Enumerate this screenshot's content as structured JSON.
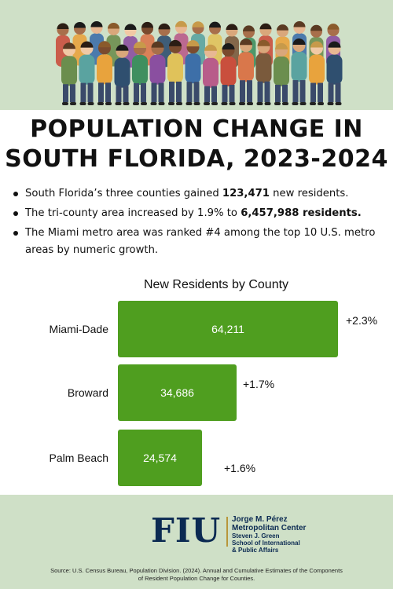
{
  "title": {
    "line1": "POPULATION CHANGE IN",
    "line2": "SOUTH FLORIDA, 2023-2024"
  },
  "bullets": [
    {
      "before": "South Florida’s three counties gained ",
      "bold": "123,471",
      "after": " new residents."
    },
    {
      "before": "The tri-county area increased by 1.9% to ",
      "bold": "6,457,988 residents.",
      "after": ""
    },
    {
      "before": "The Miami metro area was ranked #4  among the top 10 U.S. metro areas by numeric growth.",
      "bold": "",
      "after": ""
    }
  ],
  "chart_data": {
    "type": "bar",
    "orientation": "horizontal",
    "title": "New Residents by County",
    "categories": [
      "Miami-Dade",
      "Broward",
      "Palm Beach"
    ],
    "values": [
      64211,
      34686,
      24574
    ],
    "value_labels": [
      "64,211",
      "34,686",
      "24,574"
    ],
    "pct_labels": [
      "+2.3%",
      "+1.7%",
      "+1.6%"
    ],
    "bar_color": "#4f9e1f",
    "xlim": [
      0,
      64211
    ],
    "grid": false,
    "legend": "none"
  },
  "logo": {
    "mark": "FIU",
    "center_lines": [
      "Jorge M. Pérez",
      "Metropolitan Center",
      "Steven J. Green",
      "School of International",
      "& Public Affairs"
    ]
  },
  "source": "Source: U.S. Census Bureau, Population Division. (2024).  Annual and Cumulative Estimates of the Components of Resident Population Change for Counties.",
  "colors": {
    "background": "#cfe0c7",
    "panel": "#ffffff",
    "navy": "#0b2a52",
    "gold": "#b8963a"
  }
}
